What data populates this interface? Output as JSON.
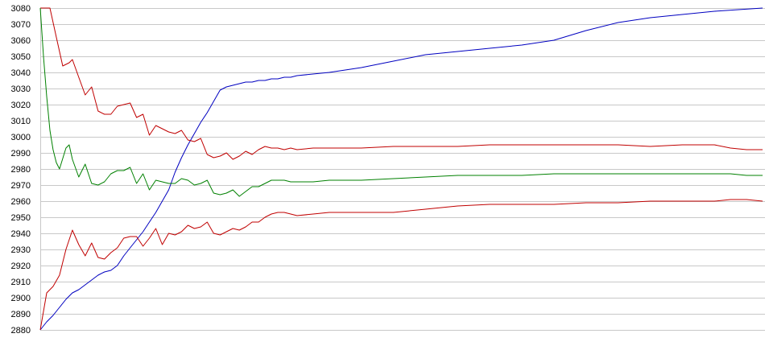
{
  "chart_data": {
    "type": "line",
    "title": "",
    "xlabel": "",
    "ylabel": "",
    "ylim": [
      2880,
      3080
    ],
    "xlim": [
      0,
      225
    ],
    "yticks": [
      2880,
      2890,
      2900,
      2910,
      2920,
      2930,
      2940,
      2950,
      2960,
      2970,
      2980,
      2990,
      3000,
      3010,
      3020,
      3030,
      3040,
      3050,
      3060,
      3070,
      3080
    ],
    "grid": true,
    "legend": "none",
    "series": [
      {
        "color": "#0000c0",
        "x": [
          0,
          2,
          4,
          6,
          8,
          10,
          12,
          14,
          16,
          18,
          20,
          22,
          24,
          26,
          28,
          30,
          32,
          34,
          36,
          38,
          40,
          42,
          44,
          46,
          48,
          50,
          52,
          54,
          56,
          58,
          60,
          62,
          64,
          66,
          68,
          70,
          72,
          74,
          76,
          78,
          80,
          90,
          100,
          110,
          120,
          130,
          140,
          150,
          160,
          170,
          180,
          190,
          200,
          210,
          225
        ],
        "y": [
          2880,
          2885,
          2889,
          2894,
          2899,
          2903,
          2905,
          2908,
          2911,
          2914,
          2916,
          2917,
          2920,
          2926,
          2931,
          2936,
          2941,
          2947,
          2953,
          2960,
          2967,
          2978,
          2987,
          2995,
          3002,
          3009,
          3015,
          3022,
          3029,
          3031,
          3032,
          3033,
          3034,
          3034,
          3035,
          3035,
          3036,
          3036,
          3037,
          3037,
          3038,
          3040,
          3043,
          3047,
          3051,
          3053,
          3055,
          3057,
          3060,
          3066,
          3071,
          3074,
          3076,
          3078,
          3080
        ]
      },
      {
        "color": "#c00000",
        "x": [
          0,
          3,
          5,
          7,
          9,
          10,
          12,
          14,
          16,
          18,
          20,
          22,
          24,
          26,
          28,
          30,
          32,
          34,
          36,
          38,
          40,
          42,
          44,
          46,
          48,
          50,
          52,
          54,
          56,
          58,
          60,
          62,
          64,
          66,
          68,
          70,
          72,
          74,
          76,
          78,
          80,
          85,
          90,
          95,
          100,
          110,
          120,
          130,
          140,
          150,
          160,
          170,
          180,
          190,
          200,
          210,
          215,
          220,
          225
        ],
        "y": [
          3080,
          3080,
          3062,
          3044,
          3046,
          3048,
          3037,
          3026,
          3031,
          3016,
          3014,
          3014,
          3019,
          3020,
          3021,
          3012,
          3014,
          3001,
          3007,
          3005,
          3003,
          3002,
          3004,
          2998,
          2997,
          2999,
          2989,
          2987,
          2988,
          2990,
          2986,
          2988,
          2991,
          2989,
          2992,
          2994,
          2993,
          2993,
          2992,
          2993,
          2992,
          2993,
          2993,
          2993,
          2993,
          2994,
          2994,
          2994,
          2995,
          2995,
          2995,
          2995,
          2995,
          2994,
          2995,
          2995,
          2993,
          2992,
          2992
        ]
      },
      {
        "color": "#008000",
        "x": [
          0,
          1,
          2,
          3,
          4,
          5,
          6,
          8,
          9,
          10,
          12,
          14,
          16,
          18,
          20,
          22,
          24,
          26,
          28,
          30,
          32,
          34,
          36,
          38,
          40,
          42,
          44,
          46,
          48,
          50,
          52,
          54,
          56,
          58,
          60,
          62,
          64,
          66,
          68,
          70,
          72,
          74,
          76,
          78,
          80,
          85,
          90,
          95,
          100,
          110,
          120,
          130,
          140,
          150,
          160,
          170,
          180,
          190,
          200,
          210,
          215,
          220,
          225
        ],
        "y": [
          3080,
          3050,
          3025,
          3004,
          2992,
          2984,
          2980,
          2993,
          2995,
          2986,
          2975,
          2983,
          2971,
          2970,
          2972,
          2977,
          2979,
          2979,
          2981,
          2971,
          2977,
          2967,
          2973,
          2972,
          2971,
          2971,
          2974,
          2973,
          2970,
          2971,
          2973,
          2965,
          2964,
          2965,
          2967,
          2963,
          2966,
          2969,
          2969,
          2971,
          2973,
          2973,
          2973,
          2972,
          2972,
          2972,
          2973,
          2973,
          2973,
          2974,
          2975,
          2976,
          2976,
          2976,
          2977,
          2977,
          2977,
          2977,
          2977,
          2977,
          2977,
          2976,
          2976
        ]
      },
      {
        "color": "#c00000",
        "x": [
          0,
          2,
          4,
          6,
          8,
          10,
          12,
          14,
          16,
          18,
          20,
          22,
          24,
          26,
          28,
          30,
          32,
          34,
          36,
          38,
          40,
          42,
          44,
          46,
          48,
          50,
          52,
          54,
          56,
          58,
          60,
          62,
          64,
          66,
          68,
          70,
          72,
          74,
          76,
          78,
          80,
          85,
          90,
          95,
          100,
          110,
          120,
          130,
          140,
          150,
          160,
          170,
          180,
          190,
          200,
          210,
          215,
          220,
          225
        ],
        "y": [
          2880,
          2903,
          2907,
          2914,
          2930,
          2942,
          2933,
          2926,
          2934,
          2925,
          2924,
          2928,
          2931,
          2937,
          2938,
          2938,
          2932,
          2937,
          2943,
          2933,
          2940,
          2939,
          2941,
          2945,
          2943,
          2944,
          2947,
          2940,
          2939,
          2941,
          2943,
          2942,
          2944,
          2947,
          2947,
          2950,
          2952,
          2953,
          2953,
          2952,
          2951,
          2952,
          2953,
          2953,
          2953,
          2953,
          2955,
          2957,
          2958,
          2958,
          2958,
          2959,
          2959,
          2960,
          2960,
          2960,
          2961,
          2961,
          2960
        ]
      }
    ]
  }
}
